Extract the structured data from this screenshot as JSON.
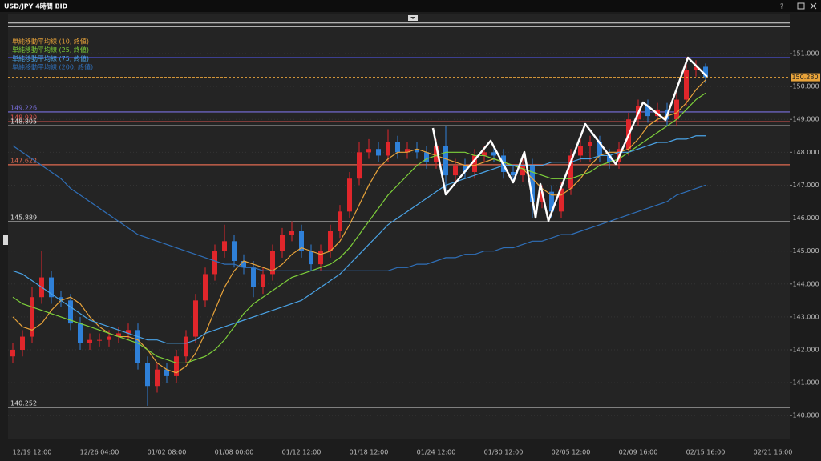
{
  "window": {
    "title": "USD/JPY 4時間 BID",
    "help": "?"
  },
  "chart_data": {
    "type": "candlestick",
    "categories": [
      null,
      null,
      "12/19 12:00",
      null,
      null,
      null,
      null,
      null,
      null,
      "12/26 04:00",
      null,
      null,
      null,
      null,
      null,
      null,
      "01/02 08:00",
      null,
      null,
      null,
      null,
      null,
      null,
      "01/08 00:00",
      null,
      null,
      null,
      null,
      null,
      null,
      "01/12 12:00",
      null,
      null,
      null,
      null,
      null,
      null,
      "01/18 12:00",
      null,
      null,
      null,
      null,
      null,
      null,
      "01/24 12:00",
      null,
      null,
      null,
      null,
      null,
      null,
      "01/30 12:00",
      null,
      null,
      null,
      null,
      null,
      null,
      "02/05 12:00",
      null,
      null,
      null,
      null,
      null,
      null,
      "02/09 16:00",
      null,
      null,
      null,
      null,
      null,
      null,
      "02/15 16:00",
      null,
      null,
      null,
      null,
      null,
      null,
      "02/21 16:00"
    ],
    "open": [
      141.8,
      142.0,
      142.4,
      143.6,
      144.2,
      143.6,
      143.5,
      142.8,
      142.2,
      142.3,
      142.3,
      142.4,
      142.5,
      142.6,
      141.6,
      140.9,
      141.4,
      141.2,
      141.8,
      142.4,
      143.5,
      144.3,
      145.0,
      145.3,
      144.7,
      144.5,
      143.9,
      144.3,
      145.0,
      145.5,
      145.6,
      145.0,
      144.6,
      145.0,
      145.6,
      146.2,
      147.2,
      148.0,
      148.1,
      147.9,
      148.3,
      148.0,
      148.1,
      148.0,
      147.7,
      148.2,
      147.3,
      147.6,
      147.4,
      147.9,
      148.0,
      147.9,
      147.4,
      147.3,
      147.6,
      146.5,
      146.8,
      146.2,
      146.9,
      147.9,
      148.2,
      148.3,
      147.9,
      147.7,
      148.1,
      149.0,
      149.4,
      149.1,
      149.3,
      149.0,
      149.6,
      150.5,
      150.6,
      null,
      null,
      null,
      null,
      null,
      null,
      null
    ],
    "high": [
      142.2,
      142.6,
      143.9,
      145.0,
      144.4,
      143.8,
      143.7,
      143.0,
      142.5,
      142.5,
      142.6,
      142.7,
      142.8,
      142.8,
      141.8,
      141.6,
      141.6,
      142.0,
      142.6,
      143.7,
      144.5,
      145.2,
      145.8,
      145.5,
      144.9,
      144.7,
      144.5,
      145.2,
      145.7,
      145.9,
      145.8,
      145.2,
      145.2,
      145.8,
      146.4,
      147.4,
      148.3,
      148.4,
      148.3,
      148.7,
      148.5,
      148.3,
      148.3,
      148.2,
      148.4,
      148.8,
      147.8,
      147.8,
      148.1,
      148.2,
      148.2,
      148.1,
      147.6,
      147.8,
      147.8,
      147.0,
      147.0,
      147.1,
      148.1,
      148.4,
      148.5,
      148.5,
      148.1,
      148.3,
      149.2,
      149.6,
      149.6,
      149.5,
      149.5,
      149.8,
      150.9,
      150.8,
      150.7,
      null,
      null,
      null,
      null,
      null,
      null,
      null
    ],
    "low": [
      141.6,
      141.8,
      142.2,
      143.4,
      143.4,
      143.3,
      142.6,
      142.0,
      142.0,
      142.1,
      142.1,
      142.2,
      142.3,
      141.4,
      140.3,
      140.7,
      141.0,
      141.0,
      141.6,
      142.2,
      143.3,
      144.1,
      144.8,
      144.5,
      144.3,
      143.6,
      143.7,
      144.1,
      144.8,
      145.3,
      144.8,
      144.4,
      144.4,
      144.8,
      145.4,
      146.0,
      147.0,
      147.8,
      147.7,
      147.7,
      147.8,
      147.8,
      147.8,
      147.5,
      147.5,
      146.8,
      147.1,
      147.2,
      147.2,
      147.7,
      147.7,
      147.2,
      147.1,
      147.1,
      146.0,
      146.3,
      146.0,
      146.0,
      146.7,
      147.7,
      147.7,
      147.7,
      147.5,
      147.5,
      147.9,
      148.8,
      148.9,
      148.9,
      148.8,
      148.8,
      149.4,
      150.3,
      150.1,
      null,
      null,
      null,
      null,
      null,
      null,
      null
    ],
    "close": [
      142.0,
      142.4,
      143.6,
      144.2,
      143.6,
      143.5,
      142.8,
      142.2,
      142.3,
      142.3,
      142.4,
      142.5,
      142.6,
      141.6,
      140.9,
      141.4,
      141.2,
      141.8,
      142.4,
      143.5,
      144.3,
      145.0,
      145.3,
      144.7,
      144.5,
      143.9,
      144.3,
      145.0,
      145.5,
      145.6,
      145.0,
      144.6,
      145.0,
      145.6,
      146.2,
      147.2,
      148.0,
      148.1,
      147.9,
      148.3,
      148.0,
      148.1,
      148.0,
      147.7,
      148.2,
      147.3,
      147.6,
      147.4,
      147.9,
      148.0,
      147.9,
      147.4,
      147.3,
      147.6,
      146.5,
      146.8,
      146.2,
      146.9,
      147.9,
      148.2,
      148.3,
      147.9,
      147.7,
      148.1,
      149.0,
      149.4,
      149.1,
      149.3,
      149.0,
      149.6,
      150.5,
      150.6,
      150.28,
      null,
      null,
      null,
      null,
      null,
      null,
      null
    ],
    "up_color": "#e0262b",
    "down_color": "#2f80d8",
    "series": [
      {
        "name": "単純移動平均線 (10, 終値)",
        "color": "#e8a33a",
        "values": [
          143.0,
          142.7,
          142.6,
          142.8,
          143.2,
          143.5,
          143.6,
          143.4,
          143.0,
          142.7,
          142.5,
          142.4,
          142.4,
          142.3,
          142.0,
          141.6,
          141.4,
          141.3,
          141.5,
          141.9,
          142.5,
          143.2,
          143.9,
          144.4,
          144.7,
          144.6,
          144.5,
          144.4,
          144.6,
          144.9,
          145.1,
          145.0,
          144.9,
          145.0,
          145.3,
          145.8,
          146.4,
          147.0,
          147.5,
          147.8,
          148.0,
          148.0,
          148.1,
          148.0,
          147.9,
          147.8,
          147.7,
          147.6,
          147.6,
          147.7,
          147.8,
          147.7,
          147.6,
          147.5,
          147.2,
          146.9,
          146.7,
          146.7,
          146.9,
          147.2,
          147.6,
          147.9,
          148.0,
          148.0,
          148.1,
          148.4,
          148.8,
          149.0,
          149.1,
          149.2,
          149.5,
          149.9,
          150.2,
          null,
          null,
          null,
          null,
          null,
          null,
          null
        ]
      },
      {
        "name": "単純移動平均線 (25, 終値)",
        "color": "#7dcf3a",
        "values": [
          143.6,
          143.4,
          143.3,
          143.2,
          143.1,
          143.0,
          142.9,
          142.8,
          142.7,
          142.6,
          142.5,
          142.4,
          142.3,
          142.2,
          142.0,
          141.8,
          141.7,
          141.6,
          141.6,
          141.7,
          141.8,
          142.0,
          142.3,
          142.7,
          143.1,
          143.4,
          143.6,
          143.8,
          144.0,
          144.2,
          144.3,
          144.4,
          144.5,
          144.6,
          144.8,
          145.1,
          145.5,
          145.9,
          146.3,
          146.7,
          147.0,
          147.3,
          147.6,
          147.8,
          147.9,
          148.0,
          148.0,
          148.0,
          147.9,
          147.9,
          147.8,
          147.7,
          147.6,
          147.5,
          147.4,
          147.3,
          147.2,
          147.2,
          147.2,
          147.3,
          147.4,
          147.6,
          147.7,
          147.8,
          148.0,
          148.2,
          148.4,
          148.6,
          148.8,
          149.0,
          149.3,
          149.6,
          149.8,
          null,
          null,
          null,
          null,
          null,
          null,
          null
        ]
      },
      {
        "name": "単純移動平均線 (75, 終値)",
        "color": "#4aa3e6",
        "values": [
          144.4,
          144.3,
          144.1,
          143.9,
          143.7,
          143.5,
          143.3,
          143.1,
          142.9,
          142.8,
          142.7,
          142.6,
          142.5,
          142.4,
          142.3,
          142.3,
          142.2,
          142.2,
          142.2,
          142.3,
          142.5,
          142.6,
          142.7,
          142.8,
          142.9,
          143.0,
          143.1,
          143.2,
          143.3,
          143.4,
          143.5,
          143.7,
          143.9,
          144.1,
          144.3,
          144.6,
          144.9,
          145.2,
          145.5,
          145.8,
          146.0,
          146.2,
          146.4,
          146.6,
          146.8,
          147.0,
          147.1,
          147.2,
          147.3,
          147.4,
          147.5,
          147.6,
          147.6,
          147.6,
          147.6,
          147.6,
          147.7,
          147.7,
          147.7,
          147.8,
          147.8,
          147.9,
          147.9,
          148.0,
          148.0,
          148.1,
          148.2,
          148.3,
          148.3,
          148.4,
          148.4,
          148.5,
          148.5,
          null,
          null,
          null,
          null,
          null,
          null,
          null
        ]
      },
      {
        "name": "単純移動平均線 (200, 終値)",
        "color": "#2f6fb8",
        "values": [
          148.2,
          148.0,
          147.8,
          147.6,
          147.4,
          147.2,
          146.9,
          146.7,
          146.5,
          146.3,
          146.1,
          145.9,
          145.7,
          145.5,
          145.4,
          145.3,
          145.2,
          145.1,
          145.0,
          144.9,
          144.8,
          144.7,
          144.6,
          144.6,
          144.5,
          144.5,
          144.4,
          144.4,
          144.4,
          144.4,
          144.4,
          144.4,
          144.4,
          144.4,
          144.4,
          144.4,
          144.4,
          144.4,
          144.4,
          144.4,
          144.5,
          144.5,
          144.6,
          144.6,
          144.7,
          144.8,
          144.8,
          144.9,
          144.9,
          145.0,
          145.0,
          145.1,
          145.1,
          145.2,
          145.3,
          145.3,
          145.4,
          145.5,
          145.5,
          145.6,
          145.7,
          145.8,
          145.9,
          146.0,
          146.1,
          146.2,
          146.3,
          146.4,
          146.5,
          146.7,
          146.8,
          146.9,
          147.0,
          null,
          null,
          null,
          null,
          null,
          null,
          null
        ]
      }
    ],
    "ylim": [
      139.3,
      151.9
    ],
    "yticks": [
      {
        "value": 140,
        "label": "140.000"
      },
      {
        "value": 141,
        "label": "141.000"
      },
      {
        "value": 142,
        "label": "142.000"
      },
      {
        "value": 143,
        "label": "143.000"
      },
      {
        "value": 144,
        "label": "144.000"
      },
      {
        "value": 145,
        "label": "145.000"
      },
      {
        "value": 146,
        "label": "146.000"
      },
      {
        "value": 147,
        "label": "147.000"
      },
      {
        "value": 148,
        "label": "148.000"
      },
      {
        "value": 149,
        "label": "149.000"
      },
      {
        "value": 150,
        "label": "150.000"
      },
      {
        "value": 151,
        "label": "151.000"
      }
    ],
    "grid": true,
    "levels": [
      {
        "value": 149.226,
        "color": "#7a70e0"
      },
      {
        "value": 148.93,
        "label": "148.930",
        "color": "#d9534f"
      },
      {
        "value": 148.805,
        "color": "#dddddd"
      },
      {
        "value": 147.622,
        "color": "#e06a50"
      },
      {
        "value": 145.889,
        "color": "#dddddd"
      },
      {
        "value": 140.252,
        "color": "#dddddd"
      }
    ],
    "unlabeled_levels": [
      {
        "value": 151.93,
        "color": "#dddddd"
      },
      {
        "value": 151.82,
        "color": "#dddddd"
      },
      {
        "value": 150.88,
        "color": "#4b4fd0"
      }
    ],
    "current_price": {
      "value": 150.28,
      "label": "150.280",
      "color": "#e8a33a"
    }
  }
}
